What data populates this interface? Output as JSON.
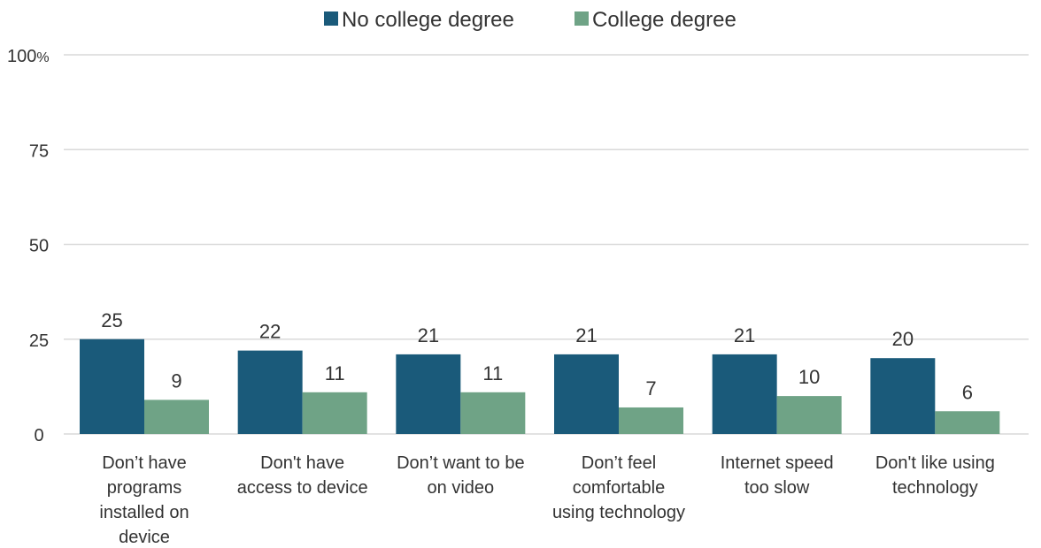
{
  "chart_data": {
    "type": "bar",
    "categories": [
      [
        "Don’t have",
        "programs",
        "installed on",
        "device"
      ],
      [
        "Don't have",
        "access to device"
      ],
      [
        "Don’t want to be",
        "on video"
      ],
      [
        "Don’t feel",
        "comfortable",
        "using technology"
      ],
      [
        "Internet speed",
        "too slow"
      ],
      [
        "Don't like using",
        "technology"
      ]
    ],
    "series": [
      {
        "name": "No college degree",
        "color": "#1a5a7a",
        "values": [
          25,
          22,
          21,
          21,
          21,
          20
        ]
      },
      {
        "name": "College degree",
        "color": "#6fa386",
        "values": [
          9,
          11,
          11,
          7,
          10,
          6
        ]
      }
    ],
    "yticks": [
      "0",
      "25",
      "50",
      "75",
      "100%"
    ],
    "ylim": [
      0,
      100
    ],
    "grid": true,
    "legend": "top-center"
  }
}
